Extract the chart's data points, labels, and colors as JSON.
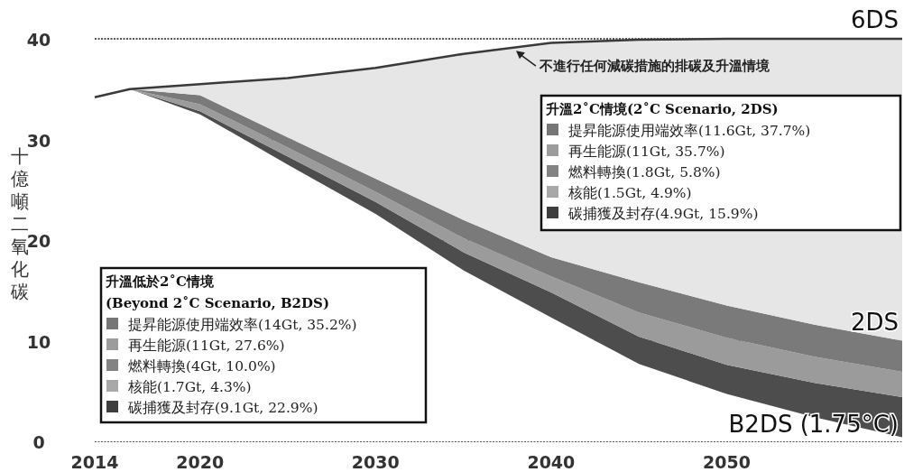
{
  "chart_data": {
    "type": "area",
    "stacked": true,
    "ylabel": "十億噸二氧化碳",
    "x": [
      2014,
      2016,
      2020,
      2025,
      2030,
      2035,
      2040,
      2045,
      2050,
      2055,
      2060
    ],
    "xlim": [
      2014,
      2060
    ],
    "ylim": [
      0,
      40
    ],
    "xticks": [
      2014,
      2020,
      2030,
      2040,
      2050
    ],
    "yticks": [
      0,
      10,
      20,
      30,
      40
    ],
    "grid": "y",
    "annotations": [
      {
        "text": "不進行任何減碳措施的排碳及升溫情境",
        "x": 2038,
        "y": 39.0
      },
      "升溫2˚C情境(2˚C Scenario, 2DS)",
      "升溫低於2˚C情境",
      "(Beyond 2˚C Scenario, B2DS)"
    ],
    "series": [
      {
        "name": "B2DS (1.75°C)",
        "color": "#ffffff",
        "values": [
          34.2,
          35.0,
          32.5,
          27.5,
          22.6,
          17.0,
          12.3,
          7.7,
          4.7,
          2.4,
          0.4
        ]
      },
      {
        "color": "#4d4d4d",
        "values": [
          0,
          0,
          0.3,
          0.8,
          1.2,
          1.8,
          2.5,
          2.7,
          2.9,
          3.4,
          4.0
        ]
      },
      {
        "color": "#9b9b9b",
        "values": [
          0,
          0,
          0.7,
          0.9,
          1.0,
          1.4,
          1.6,
          2.4,
          2.7,
          2.6,
          2.5
        ]
      },
      {
        "name": "2DS",
        "color": "#7a7a7a",
        "values": [
          0,
          0,
          0.9,
          1.0,
          1.3,
          1.8,
          1.9,
          3.0,
          3.2,
          3.2,
          3.1
        ]
      },
      {
        "name": "6DS",
        "color": "#e6e6e6",
        "values": [
          0,
          0,
          1.1,
          5.9,
          11.0,
          16.5,
          21.3,
          24.1,
          26.5,
          28.4,
          30.0
        ]
      },
      {
        "name": "提昇能源使用端效率(11.6Gt, 37.7%)",
        "color": "#767676",
        "values": [
          null,
          null,
          null,
          null,
          null,
          null,
          null,
          null,
          null,
          null,
          null
        ]
      },
      {
        "name": "再生能源(11Gt, 35.7%)",
        "color": "#9c9c9c",
        "values": [
          null,
          null,
          null,
          null,
          null,
          null,
          null,
          null,
          null,
          null,
          null
        ]
      },
      {
        "name": "燃料轉換(1.8Gt, 5.8%)",
        "color": "#838383",
        "values": [
          null,
          null,
          null,
          null,
          null,
          null,
          null,
          null,
          null,
          null,
          null
        ]
      },
      {
        "name": "核能(1.5Gt, 4.9%)",
        "color": "#a8a8a8",
        "values": [
          null,
          null,
          null,
          null,
          null,
          null,
          null,
          null,
          null,
          null,
          null
        ]
      },
      {
        "name": "碳捕獲及封存(4.9Gt, 15.9%)",
        "color": "#3e3e3e",
        "values": [
          null,
          null,
          null,
          null,
          null,
          null,
          null,
          null,
          null,
          null,
          null
        ]
      },
      {
        "name": "提昇能源使用端效率(14Gt, 35.2%)",
        "color": "#767676",
        "values": [
          null,
          null,
          null,
          null,
          null,
          null,
          null,
          null,
          null,
          null,
          null
        ]
      },
      {
        "name": "再生能源(11Gt, 27.6%)",
        "color": "#9c9c9c",
        "values": [
          null,
          null,
          null,
          null,
          null,
          null,
          null,
          null,
          null,
          null,
          null
        ]
      },
      {
        "name": "燃料轉換(4Gt, 10.0%)",
        "color": "#838383",
        "values": [
          null,
          null,
          null,
          null,
          null,
          null,
          null,
          null,
          null,
          null,
          null
        ]
      },
      {
        "name": "核能(1.7Gt, 4.3%)",
        "color": "#a8a8a8",
        "values": [
          null,
          null,
          null,
          null,
          null,
          null,
          null,
          null,
          null,
          null,
          null
        ]
      },
      {
        "name": "碳捕獲及封存(9.1Gt, 22.9%)",
        "color": "#3e3e3e",
        "values": [
          null,
          null,
          null,
          null,
          null,
          null,
          null,
          null,
          null,
          null,
          null
        ]
      }
    ]
  }
}
